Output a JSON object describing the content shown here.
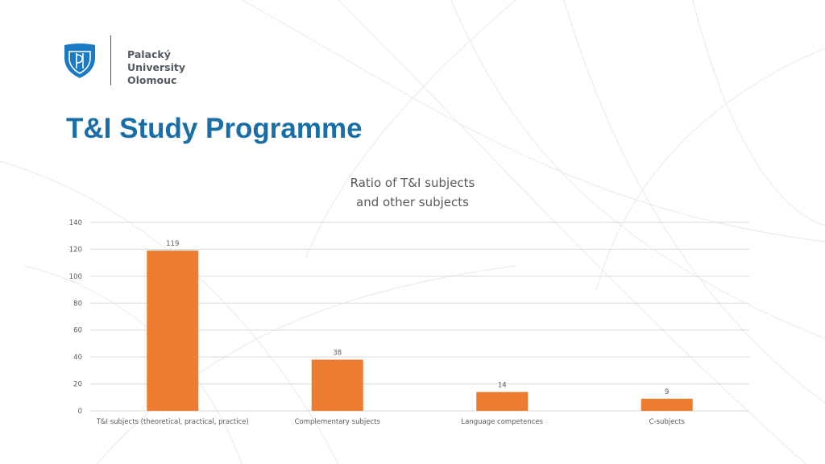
{
  "header": {
    "logo_line1": "Palacký University",
    "logo_line2": "Olomouc",
    "title": "T&I Study Programme"
  },
  "colors": {
    "brand_blue": "#1a6ea8",
    "bar_fill": "#ed7d31",
    "gridline": "#d9d9d9",
    "text_gray": "#595959"
  },
  "chart_data": {
    "type": "bar",
    "title_lines": [
      "Ratio of T&I subjects",
      "and other subjects"
    ],
    "categories": [
      "T&I subjects (theoretical, practical, practice)",
      "Complementary subjects",
      "Language competences",
      "C-subjects"
    ],
    "values": [
      119,
      38,
      14,
      9
    ],
    "data_labels": [
      "119",
      "38",
      "14",
      "9"
    ],
    "ylim": [
      0,
      140
    ],
    "yticks": [
      0,
      20,
      40,
      60,
      80,
      100,
      120,
      140
    ],
    "grid": true,
    "legend": "none"
  }
}
